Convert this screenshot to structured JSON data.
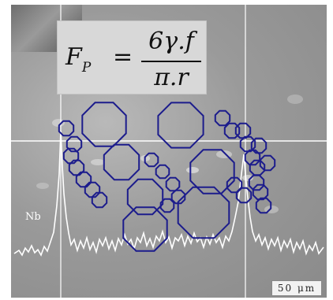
{
  "formula": {
    "lhs": "F",
    "lhs_sub": "P",
    "equals": "=",
    "numerator": "6γ.f",
    "denominator": "π.r"
  },
  "element_label": "Nb",
  "scale_bar_label": "50 μm",
  "colors": {
    "polygon_outline": "#1c1c8c",
    "linescan": "#ffffff",
    "background": "#9a9a9a"
  }
}
